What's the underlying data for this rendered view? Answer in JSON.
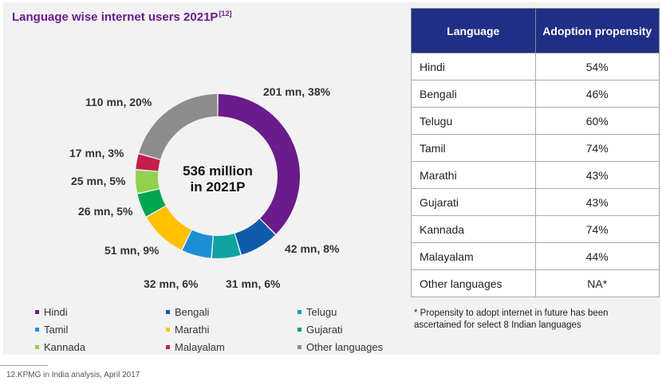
{
  "title": "Language wise internet users 2021P",
  "title_ref": "[12]",
  "colors": {
    "Hindi": "#6a1b8c",
    "Bengali": "#0f5bab",
    "Telugu": "#0fa3a3",
    "Tamil": "#1a8fd6",
    "Marathi": "#ffc000",
    "Gujarati": "#00a651",
    "Kannada": "#92d050",
    "Malayalam": "#c41e4a",
    "Other languages": "#8c8c8c"
  },
  "chart_data": {
    "type": "pie",
    "center_label_line1": "536 million",
    "center_label_line2": "in 2021P",
    "slices": [
      {
        "name": "Hindi",
        "value": 201,
        "label": "201 mn, 38%"
      },
      {
        "name": "Bengali",
        "value": 42,
        "label": "42 mn, 8%"
      },
      {
        "name": "Telugu",
        "value": 31,
        "label": "31 mn, 6%"
      },
      {
        "name": "Tamil",
        "value": 32,
        "label": "32 mn, 6%"
      },
      {
        "name": "Marathi",
        "value": 51,
        "label": "51 mn, 9%"
      },
      {
        "name": "Gujarati",
        "value": 26,
        "label": "26 mn, 5%"
      },
      {
        "name": "Kannada",
        "value": 25,
        "label": "25 mn, 5%"
      },
      {
        "name": "Malayalam",
        "value": 17,
        "label": "17 mn, 3%"
      },
      {
        "name": "Other languages",
        "value": 110,
        "label": "110 mn, 20%"
      }
    ]
  },
  "legend": [
    "Hindi",
    "Bengali",
    "Telugu",
    "Tamil",
    "Marathi",
    "Gujarati",
    "Kannada",
    "Malayalam",
    "Other languages"
  ],
  "table": {
    "header_language": "Language",
    "header_adoption": "Adoption propensity",
    "rows": [
      {
        "language": "Hindi",
        "value": "54%"
      },
      {
        "language": "Bengali",
        "value": "46%"
      },
      {
        "language": "Telugu",
        "value": "60%"
      },
      {
        "language": "Tamil",
        "value": "74%"
      },
      {
        "language": "Marathi",
        "value": "43%"
      },
      {
        "language": "Gujarati",
        "value": "43%"
      },
      {
        "language": "Kannada",
        "value": "74%"
      },
      {
        "language": "Malayalam",
        "value": "44%"
      },
      {
        "language": "Other languages",
        "value": "NA*"
      }
    ]
  },
  "note": "* Propensity to adopt internet in future has been ascertained for select 8 Indian languages",
  "footnote": "12.KPMG in India analysis, April 2017"
}
